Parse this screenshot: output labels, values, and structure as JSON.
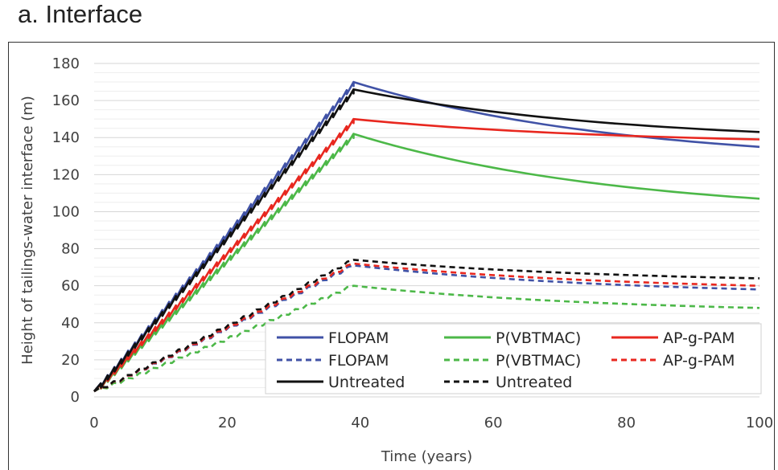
{
  "panel_title": "a. Interface",
  "chart_data": {
    "type": "line",
    "title": "",
    "xlabel": "Time (years)",
    "ylabel": "Height of tailings-water interface (m)",
    "xlim": [
      0,
      100
    ],
    "ylim": [
      0,
      180
    ],
    "xticks": [
      0,
      20,
      40,
      60,
      80,
      100
    ],
    "yticks": [
      0,
      20,
      40,
      60,
      80,
      100,
      120,
      140,
      160,
      180
    ],
    "grid": true,
    "legend_placement": "bottom-right",
    "series": [
      {
        "name": "FLOPAM",
        "color": "#4052a6",
        "dash": false,
        "fill_rate_mode": "sawtooth",
        "peak": [
          39,
          170
        ],
        "end": [
          100,
          135
        ]
      },
      {
        "name": "P(VBTMAC)",
        "color": "#4cb848",
        "dash": false,
        "fill_rate_mode": "sawtooth",
        "peak": [
          39,
          142
        ],
        "end": [
          100,
          107
        ]
      },
      {
        "name": "AP-g-PAM",
        "color": "#e8271f",
        "dash": false,
        "fill_rate_mode": "sawtooth",
        "peak": [
          39,
          150
        ],
        "end": [
          100,
          139
        ]
      },
      {
        "name": "FLOPAM",
        "color": "#4052a6",
        "dash": true,
        "fill_rate_mode": "smooth",
        "peak": [
          39,
          71
        ],
        "end": [
          100,
          58
        ]
      },
      {
        "name": "P(VBTMAC)",
        "color": "#4cb848",
        "dash": true,
        "fill_rate_mode": "smooth",
        "peak": [
          39,
          60
        ],
        "end": [
          100,
          48
        ]
      },
      {
        "name": "AP-g-PAM",
        "color": "#e8271f",
        "dash": true,
        "fill_rate_mode": "smooth",
        "peak": [
          39,
          72
        ],
        "end": [
          100,
          60
        ]
      },
      {
        "name": "Untreated",
        "color": "#111111",
        "dash": false,
        "fill_rate_mode": "sawtooth",
        "peak": [
          39,
          166
        ],
        "end": [
          100,
          143
        ]
      },
      {
        "name": "Untreated",
        "color": "#111111",
        "dash": true,
        "fill_rate_mode": "smooth",
        "peak": [
          39,
          74
        ],
        "end": [
          100,
          64
        ]
      }
    ]
  }
}
